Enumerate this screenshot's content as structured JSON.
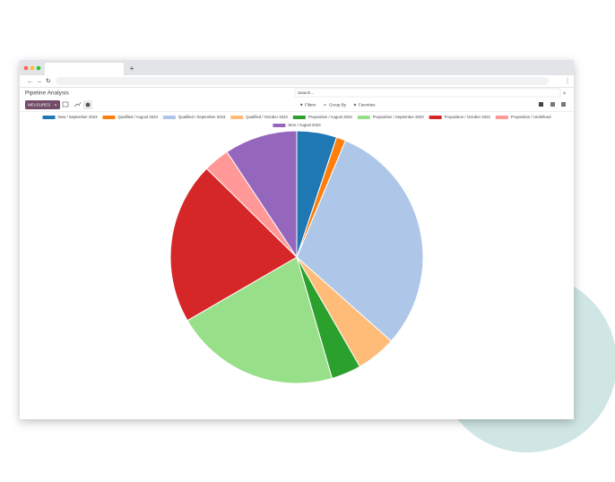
{
  "browser": {
    "new_tab": "+"
  },
  "app": {
    "title": "Pipeline Analysis",
    "search_placeholder": "Search...",
    "measures": "MEASURES",
    "filters": "Filters",
    "group_by": "Group By",
    "favorites": "Favorites"
  },
  "chart_data": {
    "type": "pie",
    "categories": [
      "New / September 2023",
      "Qualified / August 2023",
      "Qualified / September 2023",
      "Qualified / October 2023",
      "Proposition / August 2023",
      "Proposition / September 2023",
      "Proposition / October 2023",
      "Proposition / Undefined",
      "Won / August 2023"
    ],
    "values": [
      5.1,
      1.2,
      30.2,
      5.1,
      3.8,
      21.1,
      20.7,
      3.3,
      9.3
    ],
    "colors": [
      "#1f77b4",
      "#ff7f0e",
      "#aec7e8",
      "#ffbb78",
      "#2ca02c",
      "#98df8a",
      "#d62728",
      "#ff9896",
      "#9467bd"
    ],
    "legend": "top"
  }
}
